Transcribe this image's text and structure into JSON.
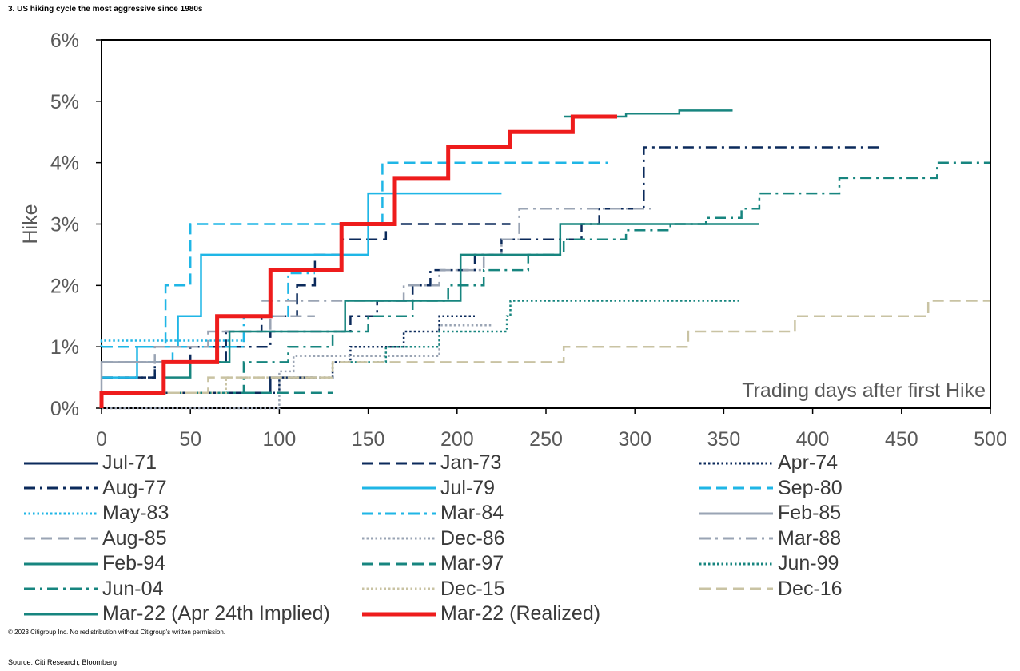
{
  "title": "3. US hiking cycle the most aggressive since 1980s",
  "copyright": "© 2023 Citigroup Inc. No redistribution without Citigroup's written permission.",
  "source": "Source: Citi Research, Bloomberg",
  "chart_data": {
    "type": "line",
    "step": true,
    "xlim": [
      0,
      500
    ],
    "ylim": [
      0,
      6
    ],
    "xticks": [
      0,
      50,
      100,
      150,
      200,
      250,
      300,
      350,
      400,
      450,
      500
    ],
    "yticks": [
      {
        "value": 0,
        "label": "0%"
      },
      {
        "value": 1,
        "label": "1%"
      },
      {
        "value": 2,
        "label": "2%"
      },
      {
        "value": 3,
        "label": "3%"
      },
      {
        "value": 4,
        "label": "4%"
      },
      {
        "value": 5,
        "label": "5%"
      },
      {
        "value": 6,
        "label": "6%"
      }
    ],
    "ylabel": "Hike",
    "annotation": "Trading days after first Hike",
    "grid": false,
    "legend_position": "bottom",
    "series": [
      {
        "name": "Jul-71",
        "color": "#0b2a5b",
        "dash": "solid",
        "width": 2.5,
        "x": [
          0,
          0,
          95,
          95,
          120
        ],
        "y": [
          0,
          0.25,
          0.25,
          0.5,
          0.5
        ]
      },
      {
        "name": "Jan-73",
        "color": "#0b2a5b",
        "dash": "dashed",
        "width": 2.5,
        "x": [
          0,
          30,
          30,
          50,
          50,
          70,
          70,
          90,
          90,
          110,
          110,
          120,
          120,
          135,
          135,
          160,
          160,
          230
        ],
        "y": [
          0.5,
          0.5,
          0.75,
          0.75,
          1,
          1,
          1.25,
          1.25,
          1.5,
          1.5,
          2,
          2,
          2.5,
          2.5,
          2.75,
          2.75,
          3,
          3
        ]
      },
      {
        "name": "Apr-74",
        "color": "#0b2a5b",
        "dash": "dotted",
        "width": 2.5,
        "x": [
          0,
          100,
          100,
          130,
          130,
          140,
          140,
          170,
          170,
          190,
          190,
          210
        ],
        "y": [
          0.25,
          0.25,
          0.5,
          0.5,
          0.75,
          0.75,
          1,
          1,
          1.25,
          1.25,
          1.5,
          1.5
        ]
      },
      {
        "name": "Aug-77",
        "color": "#0b2a5b",
        "dash": "dashdot",
        "width": 2.5,
        "x": [
          0,
          30,
          30,
          70,
          70,
          95,
          95,
          140,
          140,
          155,
          155,
          175,
          175,
          185,
          185,
          210,
          210,
          225,
          225,
          270,
          270,
          280,
          280,
          305,
          305,
          440
        ],
        "y": [
          0.5,
          0.5,
          0.75,
          0.75,
          1,
          1,
          1.25,
          1.25,
          1.5,
          1.5,
          1.75,
          1.75,
          2,
          2,
          2.25,
          2.25,
          2.5,
          2.5,
          2.75,
          2.75,
          3,
          3,
          3.25,
          3.25,
          4.25,
          4.25
        ]
      },
      {
        "name": "Jul-79",
        "color": "#1fb6e6",
        "dash": "solid",
        "width": 2.5,
        "x": [
          0,
          20,
          20,
          43,
          43,
          56,
          56,
          150,
          150,
          158,
          158,
          225
        ],
        "y": [
          0.5,
          0.5,
          1,
          1,
          1.5,
          1.5,
          2.5,
          2.5,
          3.5,
          3.5,
          3.5,
          3.5
        ]
      },
      {
        "name": "Sep-80",
        "color": "#1fb6e6",
        "dash": "dashed",
        "width": 2.5,
        "x": [
          0,
          36,
          36,
          50,
          50,
          158,
          158,
          285
        ],
        "y": [
          1,
          1,
          2,
          2,
          3,
          3,
          4,
          4
        ]
      },
      {
        "name": "May-83",
        "color": "#1fb6e6",
        "dash": "dotted",
        "width": 2.5,
        "x": [
          0,
          0,
          60,
          60,
          80
        ],
        "y": [
          1,
          1.1,
          1.1,
          1.1,
          1.1
        ]
      },
      {
        "name": "Mar-84",
        "color": "#1fb6e6",
        "dash": "dashdot",
        "width": 2.5,
        "x": [
          0,
          40,
          40,
          80,
          80,
          105,
          105,
          120
        ],
        "y": [
          0.75,
          0.75,
          1,
          1,
          1.5,
          1.5,
          2.2,
          2.2
        ]
      },
      {
        "name": "Feb-85",
        "color": "#9aa4b4",
        "dash": "solid",
        "width": 2.5,
        "x": [
          0,
          0,
          40
        ],
        "y": [
          0,
          0.75,
          0.75
        ]
      },
      {
        "name": "Aug-85",
        "color": "#9aa4b4",
        "dash": "dashed",
        "width": 2.5,
        "x": [
          0,
          30,
          30,
          60,
          60,
          95,
          95,
          120
        ],
        "y": [
          0.75,
          0.75,
          1,
          1,
          1.25,
          1.25,
          1.5,
          1.5
        ]
      },
      {
        "name": "Dec-86",
        "color": "#9aa4b4",
        "dash": "dotted",
        "width": 2.5,
        "x": [
          0,
          100,
          100,
          108,
          108,
          190,
          190,
          220
        ],
        "y": [
          0,
          0,
          0.6,
          0.6,
          0.85,
          0.85,
          1.35,
          1.35
        ]
      },
      {
        "name": "Mar-88",
        "color": "#9aa4b4",
        "dash": "dashdot",
        "width": 2.5,
        "x": [
          90,
          110,
          110,
          170,
          170,
          190,
          190,
          215,
          215,
          225,
          225,
          235,
          235,
          240,
          240,
          300,
          300,
          310
        ],
        "y": [
          1.75,
          1.75,
          1.75,
          1.75,
          2,
          2,
          2.25,
          2.25,
          2.5,
          2.5,
          2.75,
          2.75,
          3.25,
          3.25,
          3.25,
          3.25,
          3.25,
          3.25
        ]
      },
      {
        "name": "Feb-94",
        "color": "#17857f",
        "dash": "solid",
        "width": 2.5,
        "x": [
          0,
          35,
          35,
          50,
          50,
          72,
          72,
          137,
          137,
          202,
          202,
          258,
          258,
          370
        ],
        "y": [
          0.25,
          0.25,
          0.5,
          0.5,
          0.75,
          0.75,
          1.25,
          1.25,
          1.75,
          1.75,
          2.5,
          2.5,
          3,
          3
        ]
      },
      {
        "name": "Mar-97",
        "color": "#17857f",
        "dash": "dashed",
        "width": 2.5,
        "x": [
          80,
          130
        ],
        "y": [
          0.25,
          0.25
        ]
      },
      {
        "name": "Jun-99",
        "color": "#17857f",
        "dash": "dotted",
        "width": 2.5,
        "x": [
          140,
          160,
          160,
          190,
          190,
          228,
          228,
          230,
          230,
          360
        ],
        "y": [
          0.75,
          0.75,
          1,
          1,
          1.25,
          1.25,
          1.5,
          1.5,
          1.75,
          1.75
        ]
      },
      {
        "name": "Jun-04",
        "color": "#17857f",
        "dash": "dashdot",
        "width": 2.5,
        "x": [
          0,
          80,
          80,
          105,
          105,
          130,
          130,
          150,
          150,
          175,
          175,
          195,
          195,
          215,
          215,
          240,
          240,
          260,
          260,
          295,
          295,
          320,
          320,
          340,
          340,
          360,
          360,
          370,
          370,
          415,
          415,
          450,
          450,
          470,
          470,
          485,
          485,
          500
        ],
        "y": [
          0.25,
          0.25,
          0.75,
          0.75,
          1,
          1,
          1.25,
          1.25,
          1.5,
          1.5,
          1.75,
          1.75,
          2,
          2,
          2.25,
          2.25,
          2.5,
          2.5,
          2.75,
          2.75,
          2.9,
          2.9,
          3,
          3,
          3.1,
          3.1,
          3.25,
          3.25,
          3.5,
          3.5,
          3.75,
          3.75,
          3.75,
          3.75,
          4,
          4,
          4,
          4
        ]
      },
      {
        "name": "Dec-15",
        "color": "#c9c3a3",
        "dash": "dotted",
        "width": 2.5,
        "x": [
          0,
          70,
          70,
          130
        ],
        "y": [
          0.25,
          0.25,
          0.5,
          0.5
        ]
      },
      {
        "name": "Dec-16",
        "color": "#c9c3a3",
        "dash": "dashed",
        "width": 2.5,
        "x": [
          0,
          60,
          60,
          130,
          130,
          260,
          260,
          330,
          330,
          390,
          390,
          465,
          465,
          500
        ],
        "y": [
          0.25,
          0.25,
          0.5,
          0.5,
          0.75,
          0.75,
          1,
          1,
          1.25,
          1.25,
          1.5,
          1.5,
          1.75,
          1.75
        ]
      },
      {
        "name": "Mar-22 (Apr 24th Implied)",
        "color": "#17857f",
        "dash": "solid",
        "width": 2.5,
        "x": [
          260,
          295,
          295,
          325,
          325,
          355
        ],
        "y": [
          4.75,
          4.75,
          4.8,
          4.8,
          4.85,
          4.85
        ]
      },
      {
        "name": "Mar-22 (Realized)",
        "color": "#ee1c1c",
        "dash": "solid",
        "width": 5,
        "x": [
          0,
          0,
          35,
          35,
          65,
          65,
          95,
          95,
          135,
          135,
          165,
          165,
          195,
          195,
          230,
          230,
          265,
          265,
          290
        ],
        "y": [
          0,
          0.25,
          0.25,
          0.75,
          0.75,
          1.5,
          1.5,
          2.25,
          2.25,
          3,
          3,
          3.75,
          3.75,
          4.25,
          4.25,
          4.5,
          4.5,
          4.75,
          4.75
        ]
      }
    ]
  }
}
